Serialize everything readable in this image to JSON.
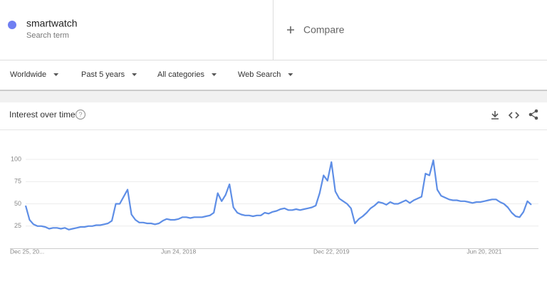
{
  "header": {
    "term": "smartwatch",
    "term_caption": "Search term",
    "compare": "Compare"
  },
  "filters": [
    "Worldwide",
    "Past 5 years",
    "All categories",
    "Web Search"
  ],
  "card_title": "Interest over time",
  "chart_data": {
    "type": "line",
    "color": "#5e8ee6",
    "grid": true,
    "categories": [
      "Dec 25, 20...",
      null,
      null,
      null,
      null,
      null,
      null,
      null,
      null,
      null,
      null,
      null,
      null,
      null,
      null,
      null,
      null,
      null,
      null,
      null,
      null,
      null,
      null,
      null,
      null,
      null,
      null,
      null,
      null,
      null,
      null,
      null,
      null,
      null,
      null,
      null,
      null,
      null,
      null,
      "Jun 24, 2018",
      null,
      null,
      null,
      null,
      null,
      null,
      null,
      null,
      null,
      null,
      null,
      null,
      null,
      null,
      null,
      null,
      null,
      null,
      null,
      null,
      null,
      null,
      null,
      null,
      null,
      null,
      null,
      null,
      null,
      null,
      null,
      null,
      null,
      null,
      null,
      null,
      null,
      null,
      "Dec 22, 2019",
      null,
      null,
      null,
      null,
      null,
      null,
      null,
      null,
      null,
      null,
      null,
      null,
      null,
      null,
      null,
      null,
      null,
      null,
      null,
      null,
      null,
      null,
      null,
      null,
      null,
      null,
      null,
      null,
      null,
      null,
      null,
      null,
      null,
      null,
      null,
      null,
      null,
      null,
      "Jun 20, 2021",
      null,
      null,
      null,
      null,
      null,
      null,
      null,
      null,
      null,
      null,
      null,
      null
    ],
    "values": [
      48,
      32,
      27,
      25,
      25,
      24,
      22,
      23,
      23,
      22,
      23,
      21,
      22,
      23,
      24,
      24,
      25,
      25,
      26,
      26,
      27,
      28,
      31,
      50,
      50,
      58,
      66,
      38,
      32,
      29,
      29,
      28,
      28,
      27,
      28,
      31,
      33,
      32,
      32,
      33,
      35,
      35,
      34,
      35,
      35,
      35,
      36,
      37,
      40,
      62,
      53,
      60,
      72,
      46,
      40,
      38,
      37,
      37,
      36,
      37,
      37,
      40,
      39,
      41,
      42,
      44,
      45,
      43,
      43,
      44,
      43,
      44,
      45,
      46,
      48,
      62,
      82,
      76,
      97,
      64,
      56,
      53,
      50,
      45,
      28,
      33,
      36,
      40,
      45,
      48,
      52,
      51,
      49,
      52,
      50,
      50,
      52,
      54,
      51,
      54,
      56,
      58,
      84,
      82,
      99,
      66,
      59,
      57,
      55,
      54,
      54,
      53,
      53,
      52,
      51,
      52,
      52,
      53,
      54,
      55,
      55,
      52,
      50,
      46,
      40,
      36,
      35,
      41,
      53,
      49
    ],
    "ylim": [
      0,
      100
    ],
    "yticks": [
      25,
      50,
      75,
      100
    ]
  }
}
